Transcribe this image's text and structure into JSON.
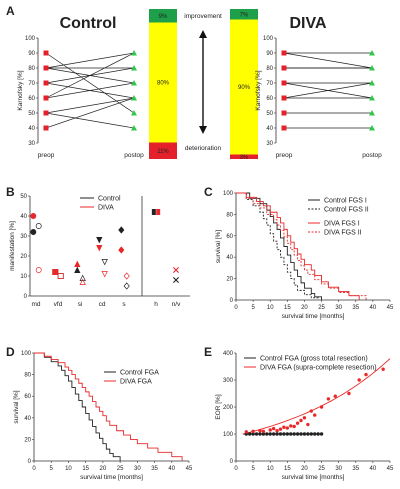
{
  "panels": {
    "A": "A",
    "B": "B",
    "C": "C",
    "D": "D",
    "E": "E"
  },
  "colors": {
    "control": "#222222",
    "diva": "#e8292b",
    "improve": "#1ea04a",
    "stable": "#ffff00",
    "deteriorate": "#e4202a"
  },
  "chart_data": [
    {
      "id": "A-control",
      "type": "line",
      "title": "Control",
      "xlabel": "",
      "ylabel": "Karnofsky [%]",
      "x": [
        "preop",
        "postop"
      ],
      "ylim": [
        30,
        100
      ],
      "yticks": [
        30,
        40,
        50,
        60,
        70,
        80,
        90,
        100
      ],
      "pairs": [
        [
          90,
          50
        ],
        [
          80,
          90
        ],
        [
          80,
          80
        ],
        [
          80,
          70
        ],
        [
          70,
          80
        ],
        [
          70,
          60
        ],
        [
          60,
          70
        ],
        [
          60,
          90
        ],
        [
          50,
          60
        ],
        [
          50,
          40
        ],
        [
          40,
          60
        ]
      ]
    },
    {
      "id": "A-bars",
      "type": "bar",
      "labels": {
        "improvement": "improvement",
        "deterioration": "deterioration"
      },
      "control": [
        {
          "label": "9%",
          "value": 9,
          "cls": "improve"
        },
        {
          "label": "80%",
          "value": 80,
          "cls": "stable"
        },
        {
          "label": "11%",
          "value": 11,
          "cls": "deteriorate"
        }
      ],
      "diva": [
        {
          "label": "7%",
          "value": 7,
          "cls": "improve"
        },
        {
          "label": "90%",
          "value": 90,
          "cls": "stable"
        },
        {
          "label": "3%",
          "value": 3,
          "cls": "deteriorate"
        }
      ]
    },
    {
      "id": "A-diva",
      "type": "line",
      "title": "DIVA",
      "xlabel": "",
      "ylabel": "Karnofsky [%]",
      "x": [
        "preop",
        "postop"
      ],
      "ylim": [
        30,
        100
      ],
      "yticks": [
        30,
        40,
        50,
        60,
        70,
        80,
        90,
        100
      ],
      "pairs": [
        [
          90,
          90
        ],
        [
          90,
          80
        ],
        [
          80,
          80
        ],
        [
          80,
          80
        ],
        [
          70,
          60
        ],
        [
          70,
          70
        ],
        [
          60,
          70
        ],
        [
          60,
          60
        ],
        [
          50,
          50
        ],
        [
          40,
          40
        ]
      ]
    },
    {
      "id": "B",
      "type": "scatter",
      "xlabel": "",
      "ylabel": "manifestation [%]",
      "ylim": [
        0,
        50
      ],
      "yticks": [
        0,
        10,
        20,
        30,
        40,
        50
      ],
      "categories": [
        "md",
        "vfd",
        "si",
        "cd",
        "s",
        "h",
        "n/v"
      ],
      "series": [
        {
          "name": "Control"
        },
        {
          "name": "DIVA"
        }
      ],
      "points": [
        {
          "cat": 0,
          "off": -0.15,
          "y": 32,
          "shape": "circle",
          "fill": "filled",
          "series": 0
        },
        {
          "cat": 0,
          "off": 0.15,
          "y": 35,
          "shape": "circle",
          "fill": "open",
          "series": 0
        },
        {
          "cat": 0,
          "off": -0.15,
          "y": 40,
          "shape": "circle",
          "fill": "filled",
          "series": 1
        },
        {
          "cat": 0,
          "off": 0.15,
          "y": 13,
          "shape": "circle",
          "fill": "open",
          "series": 1
        },
        {
          "cat": 1,
          "off": -0.15,
          "y": 12,
          "shape": "square",
          "fill": "filled",
          "series": 0
        },
        {
          "cat": 1,
          "off": 0.15,
          "y": 10,
          "shape": "square",
          "fill": "open",
          "series": 0
        },
        {
          "cat": 1,
          "off": -0.15,
          "y": 12,
          "shape": "square",
          "fill": "filled",
          "series": 1
        },
        {
          "cat": 1,
          "off": 0.15,
          "y": 10,
          "shape": "square",
          "fill": "open",
          "series": 1
        },
        {
          "cat": 2,
          "off": -0.15,
          "y": 13,
          "shape": "triangle",
          "fill": "filled",
          "series": 0
        },
        {
          "cat": 2,
          "off": 0.15,
          "y": 9,
          "shape": "triangle",
          "fill": "open",
          "series": 0
        },
        {
          "cat": 2,
          "off": -0.15,
          "y": 16,
          "shape": "triangle",
          "fill": "filled",
          "series": 1
        },
        {
          "cat": 2,
          "off": 0.15,
          "y": 7,
          "shape": "triangle",
          "fill": "open",
          "series": 1
        },
        {
          "cat": 3,
          "off": -0.15,
          "y": 28,
          "shape": "tridown",
          "fill": "filled",
          "series": 0
        },
        {
          "cat": 3,
          "off": 0.15,
          "y": 17,
          "shape": "tridown",
          "fill": "open",
          "series": 0
        },
        {
          "cat": 3,
          "off": -0.15,
          "y": 24,
          "shape": "tridown",
          "fill": "filled",
          "series": 1
        },
        {
          "cat": 3,
          "off": 0.15,
          "y": 11,
          "shape": "tridown",
          "fill": "open",
          "series": 1
        },
        {
          "cat": 4,
          "off": -0.15,
          "y": 33,
          "shape": "diamond",
          "fill": "filled",
          "series": 0
        },
        {
          "cat": 4,
          "off": 0.15,
          "y": 5,
          "shape": "diamond",
          "fill": "open",
          "series": 0
        },
        {
          "cat": 4,
          "off": -0.15,
          "y": 23,
          "shape": "diamond",
          "fill": "filled",
          "series": 1
        },
        {
          "cat": 4,
          "off": 0.15,
          "y": 10,
          "shape": "diamond",
          "fill": "open",
          "series": 1
        },
        {
          "cat": 5,
          "off": -0.12,
          "y": 42,
          "shape": "hbar",
          "fill": "filled",
          "series": 0
        },
        {
          "cat": 5,
          "off": 0.12,
          "y": 42,
          "shape": "hbar",
          "fill": "filled",
          "series": 1
        },
        {
          "cat": 6,
          "off": 0,
          "y": 13,
          "shape": "x",
          "fill": "filled",
          "series": 1
        },
        {
          "cat": 6,
          "off": 0,
          "y": 8,
          "shape": "x",
          "fill": "filled",
          "series": 0
        }
      ]
    },
    {
      "id": "C",
      "type": "line",
      "xlabel": "survival time [months]",
      "ylabel": "survival [%]",
      "xlim": [
        0,
        45
      ],
      "ylim": [
        0,
        100
      ],
      "xticks": [
        0,
        5,
        10,
        15,
        20,
        25,
        30,
        35,
        40,
        45
      ],
      "yticks": [
        0,
        20,
        40,
        60,
        80,
        100
      ],
      "series": [
        {
          "name": "Control FGS I",
          "color": "#222222",
          "dash": "",
          "x": [
            0,
            4,
            7,
            9,
            10,
            11,
            12,
            13,
            14,
            15,
            16,
            17,
            18,
            19,
            20,
            22,
            23,
            25
          ],
          "y": [
            100,
            95,
            90,
            84,
            78,
            72,
            66,
            58,
            50,
            42,
            35,
            28,
            22,
            16,
            11,
            6,
            3,
            0
          ]
        },
        {
          "name": "Control FGS II",
          "color": "#222222",
          "dash": "2,1.5",
          "x": [
            0,
            3,
            5,
            7,
            8,
            9,
            10,
            11,
            12,
            13,
            14,
            15,
            16,
            17,
            18,
            20,
            22,
            24
          ],
          "y": [
            100,
            94,
            88,
            82,
            76,
            70,
            62,
            55,
            47,
            40,
            33,
            26,
            20,
            14,
            9,
            5,
            2,
            0
          ]
        },
        {
          "name": "DIVA FGS I",
          "color": "#e8292b",
          "dash": "",
          "x": [
            0,
            3,
            6,
            8,
            10,
            12,
            13,
            14,
            15,
            16,
            17,
            18,
            19,
            20,
            22,
            23,
            25,
            27,
            30,
            33,
            36
          ],
          "y": [
            100,
            96,
            92,
            88,
            82,
            77,
            72,
            66,
            60,
            54,
            48,
            43,
            38,
            33,
            28,
            23,
            17,
            12,
            8,
            4,
            0
          ]
        },
        {
          "name": "DIVA FGS II",
          "color": "#e8292b",
          "dash": "2,1.5",
          "x": [
            0,
            3,
            5,
            7,
            9,
            11,
            12,
            13,
            14,
            15,
            16,
            17,
            18,
            19,
            20,
            21,
            23,
            25,
            27,
            30,
            33,
            38
          ],
          "y": [
            100,
            95,
            90,
            86,
            80,
            75,
            70,
            65,
            59,
            53,
            47,
            42,
            37,
            32,
            28,
            24,
            19,
            15,
            11,
            7,
            4,
            0
          ]
        }
      ]
    },
    {
      "id": "D",
      "type": "line",
      "xlabel": "survival time [months]",
      "ylabel": "survival [%]",
      "xlim": [
        0,
        45
      ],
      "ylim": [
        0,
        100
      ],
      "xticks": [
        0,
        5,
        10,
        15,
        20,
        25,
        30,
        35,
        40,
        45
      ],
      "yticks": [
        0,
        20,
        40,
        60,
        80,
        100
      ],
      "series": [
        {
          "name": "Control FGA",
          "color": "#222222",
          "dash": "",
          "x": [
            0,
            3,
            5,
            7,
            8,
            9,
            10,
            11,
            12,
            13,
            14,
            15,
            16,
            17,
            18,
            19,
            20,
            21,
            22,
            23,
            25
          ],
          "y": [
            100,
            96,
            92,
            88,
            84,
            79,
            74,
            68,
            62,
            56,
            50,
            44,
            38,
            32,
            26,
            21,
            16,
            11,
            7,
            4,
            0
          ]
        },
        {
          "name": "DIVA FGA",
          "color": "#e8292b",
          "dash": "",
          "x": [
            0,
            3,
            5,
            7,
            9,
            10,
            11,
            12,
            13,
            14,
            15,
            16,
            17,
            18,
            19,
            20,
            21,
            22,
            24,
            26,
            28,
            30,
            33,
            36,
            40,
            43
          ],
          "y": [
            100,
            97,
            94,
            91,
            87,
            84,
            80,
            76,
            72,
            68,
            64,
            60,
            55,
            50,
            46,
            42,
            37,
            33,
            28,
            24,
            20,
            16,
            12,
            8,
            4,
            0
          ]
        }
      ]
    },
    {
      "id": "E",
      "type": "scatter",
      "xlabel": "survival time [months]",
      "ylabel": "EOR [%]",
      "xlim": [
        0,
        45
      ],
      "ylim": [
        0,
        400
      ],
      "xticks": [
        0,
        5,
        10,
        15,
        20,
        25,
        30,
        35,
        40,
        45
      ],
      "yticks": [
        0,
        100,
        200,
        300,
        400
      ],
      "series": [
        {
          "name": "Control FGA (gross total resection)",
          "color": "#222222",
          "x": [
            3,
            4,
            5,
            6,
            7,
            8,
            9,
            10,
            11,
            12,
            13,
            14,
            15,
            16,
            17,
            18,
            19,
            20,
            21,
            22,
            23,
            24,
            25
          ],
          "y": [
            100,
            100,
            100,
            100,
            100,
            100,
            100,
            100,
            100,
            100,
            100,
            100,
            100,
            100,
            100,
            100,
            100,
            100,
            100,
            100,
            100,
            100,
            100
          ]
        },
        {
          "name": "DIVA FGA (supra-complete resection)",
          "color": "#e8292b",
          "x": [
            3,
            5,
            7,
            8,
            10,
            11,
            12,
            13,
            14,
            15,
            16,
            17,
            18,
            19,
            20,
            21,
            22,
            23,
            25,
            27,
            29,
            33,
            36,
            38,
            43
          ],
          "y": [
            108,
            110,
            112,
            110,
            115,
            120,
            112,
            118,
            125,
            122,
            130,
            128,
            140,
            150,
            160,
            135,
            185,
            170,
            200,
            230,
            240,
            250,
            300,
            320,
            340
          ]
        }
      ],
      "trend": {
        "x": [
          2,
          45
        ],
        "y0": 100,
        "k": 0.031
      }
    }
  ]
}
